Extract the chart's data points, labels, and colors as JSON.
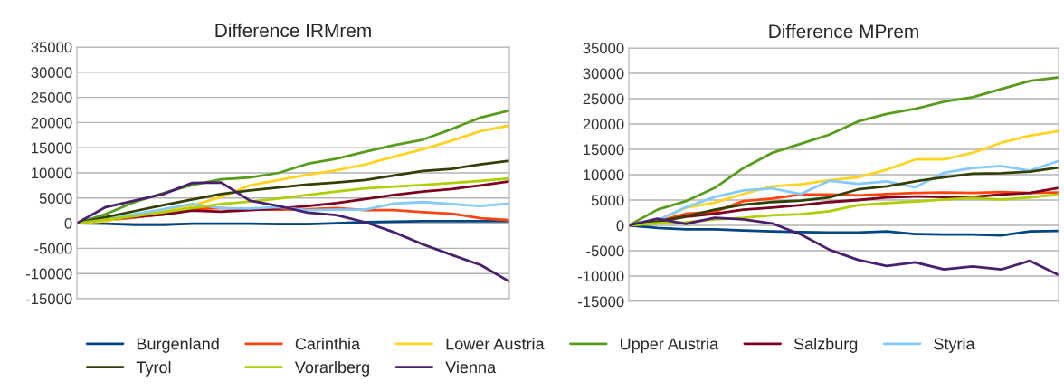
{
  "chart_data": [
    {
      "type": "line",
      "title": "Difference IRMrem",
      "categories": [
        null,
        null,
        null,
        null,
        null,
        null,
        null,
        null,
        null,
        null,
        null,
        null,
        null,
        null,
        null,
        null
      ],
      "ylim": [
        -15000,
        35000
      ],
      "yticks": [
        -15000,
        -10000,
        -5000,
        0,
        5000,
        10000,
        15000,
        20000,
        25000,
        30000,
        35000
      ],
      "grid": "y",
      "legend": "bottom",
      "series": [
        {
          "name": "Burgenland",
          "color": "#004586",
          "values": [
            0,
            -100,
            -300,
            -300,
            -100,
            -100,
            -100,
            -200,
            -200,
            0,
            200,
            300,
            400,
            400,
            400,
            400
          ]
        },
        {
          "name": "Carinthia",
          "color": "#ff420e",
          "values": [
            0,
            600,
            1100,
            1800,
            2800,
            3000,
            2700,
            2700,
            2800,
            3000,
            2600,
            2600,
            2200,
            1900,
            1000,
            600
          ]
        },
        {
          "name": "Lower Austria",
          "color": "#ffd320",
          "values": [
            0,
            400,
            1500,
            2500,
            3500,
            5200,
            7500,
            8600,
            9600,
            10500,
            11700,
            13200,
            14700,
            16400,
            18300,
            19400
          ]
        },
        {
          "name": "Upper Austria",
          "color": "#579d1c",
          "values": [
            0,
            1800,
            4200,
            6000,
            7600,
            8700,
            9100,
            10000,
            11800,
            12800,
            14200,
            15500,
            16600,
            18700,
            21000,
            22400
          ]
        },
        {
          "name": "Salzburg",
          "color": "#7e0021",
          "values": [
            0,
            800,
            1300,
            1700,
            2500,
            2300,
            2600,
            2900,
            3400,
            4000,
            4800,
            5600,
            6300,
            6800,
            7500,
            8300
          ]
        },
        {
          "name": "Styria",
          "color": "#83caff",
          "values": [
            0,
            800,
            1800,
            2800,
            3800,
            3000,
            2900,
            3200,
            2600,
            2700,
            2700,
            3900,
            4200,
            3800,
            3400,
            3900
          ]
        },
        {
          "name": "Tyrol",
          "color": "#314004",
          "values": [
            0,
            1200,
            2400,
            3600,
            4700,
            5800,
            6500,
            7100,
            7700,
            8100,
            8600,
            9500,
            10400,
            10800,
            11700,
            12400
          ]
        },
        {
          "name": "Vorarlberg",
          "color": "#aecf00",
          "values": [
            0,
            700,
            1400,
            2200,
            3000,
            3800,
            4300,
            4900,
            5600,
            6300,
            6900,
            7300,
            7600,
            8000,
            8400,
            8900
          ]
        },
        {
          "name": "Vienna",
          "color": "#4b1f6f",
          "values": [
            0,
            3200,
            4500,
            5800,
            8000,
            8100,
            4500,
            3400,
            2100,
            1600,
            200,
            -1800,
            -4200,
            -6300,
            -8300,
            -11600
          ]
        }
      ]
    },
    {
      "type": "line",
      "title": "Difference MPrem",
      "categories": [
        null,
        null,
        null,
        null,
        null,
        null,
        null,
        null,
        null,
        null,
        null,
        null,
        null,
        null,
        null,
        null
      ],
      "ylim": [
        -15000,
        35000
      ],
      "yticks": [
        -15000,
        -10000,
        -5000,
        0,
        5000,
        10000,
        15000,
        20000,
        25000,
        30000,
        35000
      ],
      "grid": "y",
      "series": [
        {
          "color": "#004586",
          "values": [
            0,
            -500,
            -800,
            -800,
            -1000,
            -1200,
            -1300,
            -1400,
            -1400,
            -1200,
            -1700,
            -1800,
            -1800,
            -2000,
            -1200,
            -1100
          ]
        },
        {
          "color": "#ff420e",
          "values": [
            0,
            800,
            2300,
            2700,
            4800,
            5300,
            6100,
            6100,
            5900,
            6200,
            6400,
            6500,
            6400,
            6600,
            6400,
            6500
          ]
        },
        {
          "color": "#ffd320",
          "values": [
            0,
            1000,
            3500,
            4500,
            6200,
            7700,
            8100,
            8900,
            9500,
            11000,
            13000,
            13000,
            14300,
            16300,
            17700,
            18600
          ]
        },
        {
          "color": "#579d1c",
          "values": [
            0,
            3100,
            4800,
            7400,
            11300,
            14300,
            16100,
            17900,
            20500,
            22000,
            23000,
            24400,
            25300,
            26900,
            28500,
            29200
          ]
        },
        {
          "color": "#7e0021",
          "values": [
            0,
            700,
            1700,
            2300,
            3100,
            3500,
            4000,
            4600,
            5000,
            5500,
            5700,
            5600,
            5600,
            6100,
            6400,
            7400
          ]
        },
        {
          "color": "#83caff",
          "values": [
            0,
            1000,
            3600,
            5600,
            6900,
            7300,
            6200,
            8800,
            8200,
            8700,
            7500,
            10400,
            11300,
            11700,
            10800,
            12700
          ]
        },
        {
          "color": "#314004",
          "values": [
            0,
            800,
            1800,
            3100,
            4100,
            4600,
            4900,
            5500,
            7100,
            7700,
            8700,
            9500,
            10200,
            10300,
            10600,
            11400
          ]
        },
        {
          "color": "#aecf00",
          "values": [
            0,
            400,
            600,
            1200,
            1500,
            2000,
            2200,
            2800,
            4000,
            4400,
            4700,
            5100,
            5400,
            5100,
            5500,
            6100
          ]
        },
        {
          "color": "#4b1f6f",
          "values": [
            0,
            1300,
            300,
            1500,
            1200,
            400,
            -1800,
            -4800,
            -6800,
            -8000,
            -7300,
            -8700,
            -8100,
            -8700,
            -7000,
            -9800
          ]
        }
      ]
    }
  ]
}
